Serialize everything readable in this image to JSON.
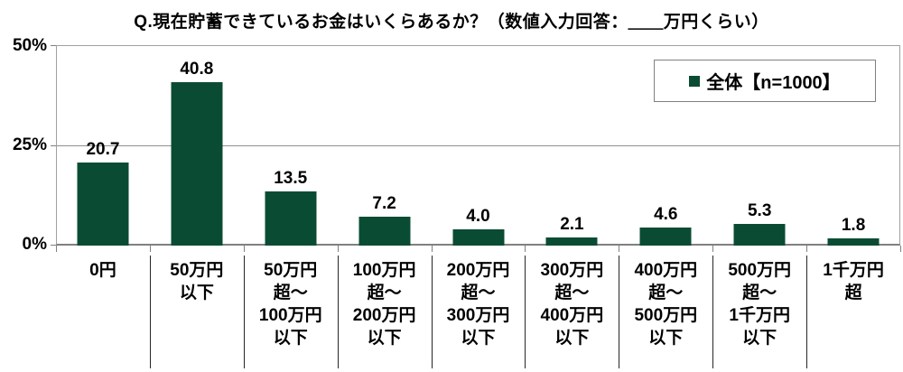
{
  "title": "Q.現在貯蓄できているお金はいくらあるか？（数値入力回答：＿＿万円くらい）",
  "legend": {
    "label": "全体【n=1000】",
    "marker_color": "#0a4c33"
  },
  "y_axis": {
    "ticks_top_to_bottom": [
      "50%",
      "25%",
      "0%"
    ]
  },
  "chart_data": {
    "type": "bar",
    "title": "Q.現在貯蓄できているお金はいくらあるか？（数値入力回答：＿＿万円くらい）",
    "series_name": "全体【n=1000】",
    "categories": [
      "0円",
      "50万円以下",
      "50万円超〜100万円以下",
      "100万円超〜200万円以下",
      "200万円超〜300万円以下",
      "300万円超〜400万円以下",
      "400万円超〜500万円以下",
      "500万円超〜1千万円以下",
      "1千万円超"
    ],
    "category_lines": [
      [
        "0円"
      ],
      [
        "50万円",
        "以下"
      ],
      [
        "50万円",
        "超〜",
        "100万円",
        "以下"
      ],
      [
        "100万円",
        "超〜",
        "200万円",
        "以下"
      ],
      [
        "200万円",
        "超〜",
        "300万円",
        "以下"
      ],
      [
        "300万円",
        "超〜",
        "400万円",
        "以下"
      ],
      [
        "400万円",
        "超〜",
        "500万円",
        "以下"
      ],
      [
        "500万円",
        "超〜",
        "1千万円",
        "以下"
      ],
      [
        "1千万円",
        "超"
      ]
    ],
    "values": [
      20.7,
      40.8,
      13.5,
      7.2,
      4.0,
      2.1,
      4.6,
      5.3,
      1.8
    ],
    "value_labels": [
      "20.7",
      "40.8",
      "13.5",
      "7.2",
      "4.0",
      "2.1",
      "4.6",
      "5.3",
      "1.8"
    ],
    "ylabel": "",
    "xlabel": "",
    "ylim": [
      0,
      50
    ],
    "ytick_labels": [
      "0%",
      "25%",
      "50%"
    ],
    "grid": "horizontal line at 25% only",
    "legend_position": "top-right inside plot",
    "bar_color": "#0a4c33",
    "unit": "%"
  }
}
